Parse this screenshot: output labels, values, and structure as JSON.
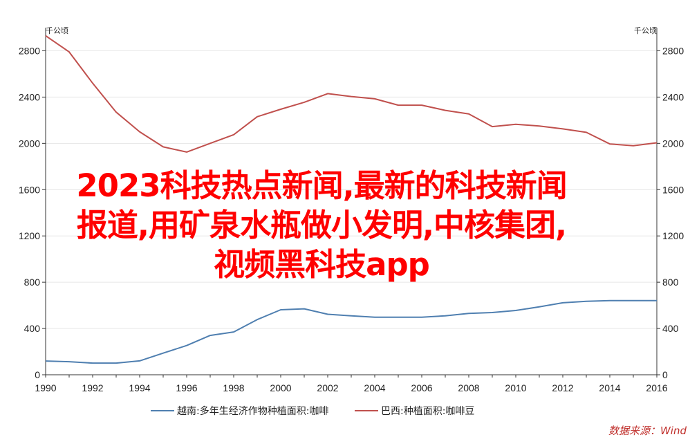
{
  "chart_data": {
    "type": "line",
    "unit_left": "千公顷",
    "unit_right": "千公顷",
    "xlim": [
      1990,
      2016
    ],
    "ylim": [
      0,
      3000
    ],
    "x_ticks": [
      1990,
      1992,
      1994,
      1996,
      1998,
      2000,
      2002,
      2004,
      2006,
      2008,
      2010,
      2012,
      2014,
      2016
    ],
    "y_ticks": [
      0,
      400,
      800,
      1200,
      1600,
      2000,
      2400,
      2800
    ],
    "legend_position": "bottom",
    "source": "数据来源：Wind",
    "series": [
      {
        "name": "越南:多年生经济作物种植面积:咖啡",
        "color": "#4f7fb0",
        "x": [
          1990,
          1991,
          1992,
          1993,
          1994,
          1995,
          1996,
          1997,
          1998,
          1999,
          2000,
          2001,
          2002,
          2003,
          2004,
          2005,
          2006,
          2007,
          2008,
          2009,
          2010,
          2011,
          2012,
          2013,
          2014,
          2015,
          2016
        ],
        "values": [
          119,
          113,
          101,
          101,
          120,
          187,
          253,
          340,
          370,
          477,
          562,
          570,
          523,
          510,
          497,
          497,
          497,
          510,
          530,
          538,
          556,
          587,
          622,
          635,
          641,
          641,
          641
        ]
      },
      {
        "name": "巴西:种植面积:咖啡豆",
        "color": "#c0504d",
        "x": [
          1990,
          1991,
          1992,
          1993,
          1994,
          1995,
          1996,
          1997,
          1998,
          1999,
          2000,
          2001,
          2002,
          2003,
          2004,
          2005,
          2006,
          2007,
          2008,
          2009,
          2010,
          2011,
          2012,
          2013,
          2014,
          2015,
          2016
        ],
        "values": [
          2930,
          2790,
          2520,
          2270,
          2100,
          1970,
          1925,
          2000,
          2075,
          2230,
          2295,
          2355,
          2430,
          2405,
          2385,
          2330,
          2330,
          2285,
          2255,
          2145,
          2165,
          2150,
          2125,
          2095,
          1995,
          1980,
          2005
        ]
      }
    ]
  },
  "overlay": {
    "lines": [
      "2023科技热点新闻,最新的科技新闻",
      "报道,用矿泉水瓶做小发明,中核集团,",
      "视频黑科技app"
    ]
  }
}
